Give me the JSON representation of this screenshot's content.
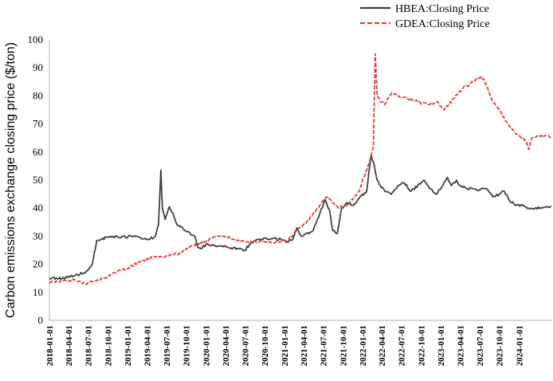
{
  "chart_data": {
    "type": "line",
    "xlabel": "",
    "ylabel": "Carbon emissions exchange closing price ($/ton)",
    "ylim": [
      0,
      100
    ],
    "yticks": [
      "0",
      "10",
      "20",
      "30",
      "40",
      "50",
      "60",
      "70",
      "80",
      "90",
      "100"
    ],
    "xticks": [
      "2018-01-01",
      "2018-04-01",
      "2018-07-01",
      "2018-10-01",
      "2019-01-01",
      "2019-04-01",
      "2019-07-01",
      "2019-10-01",
      "2020-01-01",
      "2020-04-01",
      "2020-07-01",
      "2020-10-01",
      "2021-01-01",
      "2021-04-01",
      "2021-07-01",
      "2021-10-01",
      "2022-01-01",
      "2022-04-01",
      "2022-07-01",
      "2022-10-01",
      "2023-01-01",
      "2023-04-01",
      "2023-07-01",
      "2023-10-01",
      "2024-01-01"
    ],
    "x_range": [
      "2018-01-01",
      "2024-05-31"
    ],
    "grid": false,
    "legend_position": "top-right",
    "series": [
      {
        "name": "HBEA:Closing Price",
        "color": "#404040",
        "style": "solid",
        "points": [
          [
            "2018-01-01",
            15
          ],
          [
            "2018-03-01",
            15
          ],
          [
            "2018-05-01",
            16
          ],
          [
            "2018-06-15",
            17
          ],
          [
            "2018-07-20",
            20
          ],
          [
            "2018-08-10",
            28.5
          ],
          [
            "2018-09-01",
            29
          ],
          [
            "2018-10-15",
            30
          ],
          [
            "2018-12-01",
            29.5
          ],
          [
            "2019-01-15",
            30
          ],
          [
            "2019-03-01",
            29.5
          ],
          [
            "2019-04-15",
            29
          ],
          [
            "2019-05-10",
            30
          ],
          [
            "2019-05-25",
            34
          ],
          [
            "2019-06-05",
            53.5
          ],
          [
            "2019-06-12",
            40
          ],
          [
            "2019-06-25",
            36
          ],
          [
            "2019-07-15",
            40.5
          ],
          [
            "2019-08-01",
            38
          ],
          [
            "2019-08-20",
            34
          ],
          [
            "2019-09-15",
            33
          ],
          [
            "2019-10-20",
            31
          ],
          [
            "2019-11-10",
            30
          ],
          [
            "2019-11-25",
            26
          ],
          [
            "2019-12-10",
            25.5
          ],
          [
            "2020-01-01",
            27
          ],
          [
            "2020-02-01",
            27
          ],
          [
            "2020-03-01",
            26.5
          ],
          [
            "2020-04-15",
            26
          ],
          [
            "2020-06-01",
            25.5
          ],
          [
            "2020-07-01",
            25
          ],
          [
            "2020-08-01",
            28
          ],
          [
            "2020-09-15",
            29
          ],
          [
            "2020-11-01",
            29
          ],
          [
            "2020-12-15",
            29
          ],
          [
            "2021-01-15",
            28
          ],
          [
            "2021-02-10",
            29
          ],
          [
            "2021-03-01",
            33
          ],
          [
            "2021-03-20",
            30
          ],
          [
            "2021-04-15",
            31
          ],
          [
            "2021-05-15",
            32
          ],
          [
            "2021-06-15",
            38
          ],
          [
            "2021-07-10",
            43
          ],
          [
            "2021-08-01",
            39
          ],
          [
            "2021-08-15",
            32
          ],
          [
            "2021-09-05",
            31
          ],
          [
            "2021-09-25",
            40
          ],
          [
            "2021-10-20",
            42
          ],
          [
            "2021-11-20",
            41
          ],
          [
            "2021-12-20",
            44
          ],
          [
            "2022-01-20",
            46
          ],
          [
            "2022-02-10",
            59
          ],
          [
            "2022-02-25",
            55
          ],
          [
            "2022-03-10",
            50
          ],
          [
            "2022-03-25",
            48
          ],
          [
            "2022-04-15",
            46
          ],
          [
            "2022-05-15",
            45
          ],
          [
            "2022-06-15",
            48
          ],
          [
            "2022-07-15",
            49
          ],
          [
            "2022-08-15",
            46
          ],
          [
            "2022-09-15",
            48
          ],
          [
            "2022-10-15",
            50
          ],
          [
            "2022-11-10",
            47
          ],
          [
            "2022-12-10",
            45
          ],
          [
            "2023-01-10",
            48
          ],
          [
            "2023-02-01",
            51
          ],
          [
            "2023-02-20",
            48
          ],
          [
            "2023-03-15",
            50
          ],
          [
            "2023-04-01",
            48
          ],
          [
            "2023-05-01",
            47
          ],
          [
            "2023-06-01",
            47
          ],
          [
            "2023-07-01",
            46.5
          ],
          [
            "2023-08-01",
            47
          ],
          [
            "2023-09-01",
            44
          ],
          [
            "2023-10-01",
            45
          ],
          [
            "2023-10-25",
            46
          ],
          [
            "2023-11-15",
            43
          ],
          [
            "2023-12-15",
            41
          ],
          [
            "2024-01-15",
            41
          ],
          [
            "2024-02-15",
            40
          ],
          [
            "2024-03-15",
            40
          ],
          [
            "2024-04-15",
            40
          ],
          [
            "2024-05-31",
            40.5
          ]
        ]
      },
      {
        "name": "GDEA:Closing Price",
        "color": "#e03b3b",
        "style": "dashed",
        "points": [
          [
            "2018-01-01",
            13.5
          ],
          [
            "2018-03-01",
            14
          ],
          [
            "2018-05-01",
            14.5
          ],
          [
            "2018-06-15",
            13
          ],
          [
            "2018-08-01",
            14
          ],
          [
            "2018-09-15",
            15
          ],
          [
            "2018-11-01",
            17
          ],
          [
            "2019-01-01",
            18.5
          ],
          [
            "2019-03-01",
            21
          ],
          [
            "2019-05-01",
            22.5
          ],
          [
            "2019-07-01",
            23
          ],
          [
            "2019-09-01",
            24
          ],
          [
            "2019-11-01",
            27
          ],
          [
            "2020-01-01",
            28
          ],
          [
            "2020-02-01",
            29.5
          ],
          [
            "2020-03-01",
            30
          ],
          [
            "2020-04-01",
            30
          ],
          [
            "2020-05-01",
            29
          ],
          [
            "2020-06-01",
            28.5
          ],
          [
            "2020-08-01",
            28
          ],
          [
            "2020-10-01",
            28
          ],
          [
            "2020-12-01",
            28
          ],
          [
            "2021-01-15",
            28.5
          ],
          [
            "2021-02-15",
            31
          ],
          [
            "2021-03-15",
            33
          ],
          [
            "2021-04-15",
            35
          ],
          [
            "2021-05-15",
            38
          ],
          [
            "2021-06-15",
            41
          ],
          [
            "2021-07-15",
            44
          ],
          [
            "2021-08-15",
            42
          ],
          [
            "2021-09-15",
            40
          ],
          [
            "2021-10-15",
            41
          ],
          [
            "2021-11-15",
            43
          ],
          [
            "2021-12-15",
            46
          ],
          [
            "2022-01-15",
            53
          ],
          [
            "2022-02-01",
            56
          ],
          [
            "2022-02-20",
            62
          ],
          [
            "2022-03-01",
            95
          ],
          [
            "2022-03-10",
            80
          ],
          [
            "2022-03-25",
            78
          ],
          [
            "2022-04-15",
            77
          ],
          [
            "2022-05-15",
            81
          ],
          [
            "2022-06-15",
            80
          ],
          [
            "2022-08-01",
            79
          ],
          [
            "2022-09-15",
            78
          ],
          [
            "2022-11-01",
            77
          ],
          [
            "2022-12-15",
            78
          ],
          [
            "2023-01-15",
            75
          ],
          [
            "2023-03-01",
            79
          ],
          [
            "2023-04-15",
            83
          ],
          [
            "2023-05-15",
            84
          ],
          [
            "2023-06-15",
            86
          ],
          [
            "2023-07-10",
            87
          ],
          [
            "2023-08-01",
            84
          ],
          [
            "2023-09-01",
            78
          ],
          [
            "2023-10-01",
            75
          ],
          [
            "2023-11-01",
            71
          ],
          [
            "2023-12-01",
            68
          ],
          [
            "2024-01-01",
            66
          ],
          [
            "2024-02-01",
            64
          ],
          [
            "2024-02-15",
            61
          ],
          [
            "2024-03-01",
            65
          ],
          [
            "2024-04-01",
            66
          ],
          [
            "2024-05-31",
            65.5
          ]
        ]
      }
    ]
  }
}
